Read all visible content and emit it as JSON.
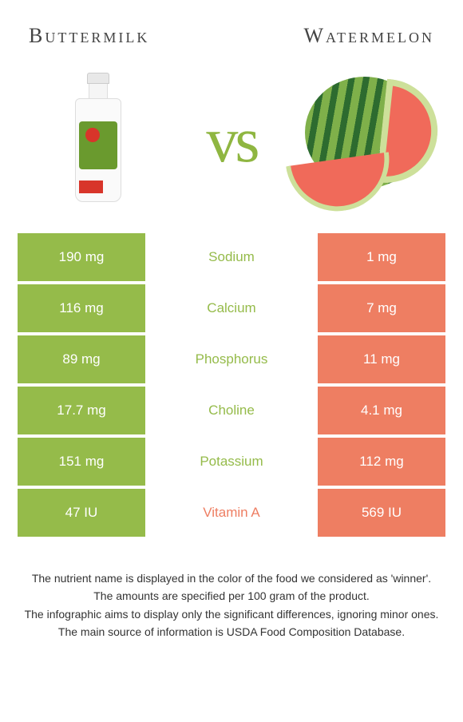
{
  "header": {
    "left_title": "Buttermilk",
    "right_title": "Watermelon"
  },
  "vs_text": "vs",
  "colors": {
    "left_bar": "#95bb4a",
    "right_bar": "#ee7e62",
    "left_text": "#95bb4a",
    "right_text": "#ee7e62",
    "background": "#ffffff"
  },
  "rows": [
    {
      "left": "190 mg",
      "label": "Sodium",
      "right": "1 mg",
      "winner": "left"
    },
    {
      "left": "116 mg",
      "label": "Calcium",
      "right": "7 mg",
      "winner": "left"
    },
    {
      "left": "89 mg",
      "label": "Phosphorus",
      "right": "11 mg",
      "winner": "left"
    },
    {
      "left": "17.7 mg",
      "label": "Choline",
      "right": "4.1 mg",
      "winner": "left"
    },
    {
      "left": "151 mg",
      "label": "Potassium",
      "right": "112 mg",
      "winner": "left"
    },
    {
      "left": "47 IU",
      "label": "Vitamin A",
      "right": "569 IU",
      "winner": "right"
    }
  ],
  "footer": {
    "line1": "The nutrient name is displayed in the color of the food we considered as 'winner'.",
    "line2": "The amounts are specified per 100 gram of the product.",
    "line3": "The infographic aims to display only the significant differences, ignoring minor ones.",
    "line4": "The main source of information is USDA Food Composition Database."
  }
}
